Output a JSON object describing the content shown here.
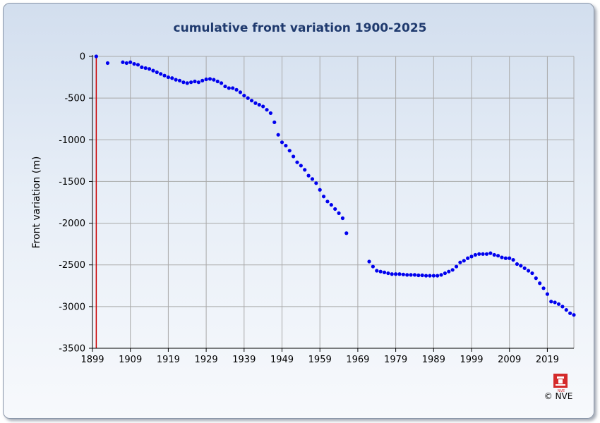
{
  "chart_data": {
    "type": "scatter",
    "title": "cumulative front variation 1900-2025",
    "xlabel": "",
    "ylabel": "Front variation (m)",
    "xlim": [
      1899,
      2026
    ],
    "ylim": [
      -3500,
      0
    ],
    "x_ticks": [
      1899,
      1909,
      1919,
      1929,
      1939,
      1949,
      1959,
      1969,
      1979,
      1989,
      1999,
      2009,
      2019
    ],
    "y_ticks": [
      0,
      -500,
      -1000,
      -1500,
      -2000,
      -2500,
      -3000,
      -3500
    ],
    "y_tick_labels": [
      "0",
      "-500",
      "-1000",
      "-1500",
      "-2000",
      "-2500",
      "-3000",
      "-3500"
    ],
    "grid": true,
    "reference_line": {
      "x": 1900,
      "color": "#cc0000"
    },
    "marker_color": "#0000ee",
    "series": [
      {
        "points": [
          [
            1900,
            0
          ],
          [
            1903,
            -80
          ],
          [
            1907,
            -70
          ],
          [
            1908,
            -80
          ],
          [
            1909,
            -70
          ],
          [
            1910,
            -90
          ],
          [
            1911,
            -100
          ],
          [
            1912,
            -130
          ],
          [
            1913,
            -140
          ],
          [
            1914,
            -150
          ],
          [
            1915,
            -170
          ],
          [
            1916,
            -190
          ],
          [
            1917,
            -210
          ],
          [
            1918,
            -230
          ],
          [
            1919,
            -250
          ],
          [
            1920,
            -260
          ],
          [
            1921,
            -280
          ],
          [
            1922,
            -290
          ],
          [
            1923,
            -310
          ],
          [
            1924,
            -320
          ],
          [
            1925,
            -310
          ],
          [
            1926,
            -300
          ],
          [
            1927,
            -310
          ],
          [
            1928,
            -290
          ],
          [
            1929,
            -275
          ],
          [
            1930,
            -270
          ],
          [
            1931,
            -280
          ],
          [
            1932,
            -300
          ],
          [
            1933,
            -320
          ],
          [
            1934,
            -360
          ],
          [
            1935,
            -380
          ],
          [
            1936,
            -380
          ],
          [
            1937,
            -400
          ],
          [
            1938,
            -430
          ],
          [
            1939,
            -470
          ],
          [
            1940,
            -500
          ],
          [
            1941,
            -530
          ],
          [
            1942,
            -560
          ],
          [
            1943,
            -580
          ],
          [
            1944,
            -600
          ],
          [
            1945,
            -640
          ],
          [
            1946,
            -680
          ],
          [
            1947,
            -790
          ],
          [
            1948,
            -940
          ],
          [
            1949,
            -1030
          ],
          [
            1950,
            -1070
          ],
          [
            1951,
            -1130
          ],
          [
            1952,
            -1200
          ],
          [
            1953,
            -1270
          ],
          [
            1954,
            -1310
          ],
          [
            1955,
            -1360
          ],
          [
            1956,
            -1430
          ],
          [
            1957,
            -1470
          ],
          [
            1958,
            -1520
          ],
          [
            1959,
            -1600
          ],
          [
            1960,
            -1680
          ],
          [
            1961,
            -1740
          ],
          [
            1962,
            -1780
          ],
          [
            1963,
            -1830
          ],
          [
            1964,
            -1880
          ],
          [
            1965,
            -1940
          ],
          [
            1966,
            -2120
          ],
          [
            1972,
            -2460
          ],
          [
            1973,
            -2520
          ],
          [
            1974,
            -2570
          ],
          [
            1975,
            -2580
          ],
          [
            1976,
            -2590
          ],
          [
            1977,
            -2600
          ],
          [
            1978,
            -2610
          ],
          [
            1979,
            -2610
          ],
          [
            1980,
            -2610
          ],
          [
            1981,
            -2615
          ],
          [
            1982,
            -2620
          ],
          [
            1983,
            -2620
          ],
          [
            1984,
            -2620
          ],
          [
            1985,
            -2625
          ],
          [
            1986,
            -2625
          ],
          [
            1987,
            -2630
          ],
          [
            1988,
            -2630
          ],
          [
            1989,
            -2630
          ],
          [
            1990,
            -2630
          ],
          [
            1991,
            -2620
          ],
          [
            1992,
            -2600
          ],
          [
            1993,
            -2580
          ],
          [
            1994,
            -2560
          ],
          [
            1995,
            -2520
          ],
          [
            1996,
            -2470
          ],
          [
            1997,
            -2450
          ],
          [
            1998,
            -2420
          ],
          [
            1999,
            -2400
          ],
          [
            2000,
            -2380
          ],
          [
            2001,
            -2370
          ],
          [
            2002,
            -2370
          ],
          [
            2003,
            -2370
          ],
          [
            2004,
            -2360
          ],
          [
            2005,
            -2380
          ],
          [
            2006,
            -2390
          ],
          [
            2007,
            -2410
          ],
          [
            2008,
            -2420
          ],
          [
            2009,
            -2420
          ],
          [
            2010,
            -2440
          ],
          [
            2011,
            -2490
          ],
          [
            2012,
            -2510
          ],
          [
            2013,
            -2540
          ],
          [
            2014,
            -2570
          ],
          [
            2015,
            -2600
          ],
          [
            2016,
            -2660
          ],
          [
            2017,
            -2720
          ],
          [
            2018,
            -2780
          ],
          [
            2019,
            -2850
          ],
          [
            2020,
            -2940
          ],
          [
            2021,
            -2950
          ],
          [
            2022,
            -2970
          ],
          [
            2023,
            -3000
          ],
          [
            2024,
            -3040
          ],
          [
            2025,
            -3080
          ],
          [
            2026,
            -3100
          ]
        ]
      }
    ]
  },
  "footer": {
    "logo_text": "NVE",
    "copyright": "© NVE"
  },
  "colors": {
    "title": "#1f3a6e",
    "grid": "#a9a9a9",
    "background_top": "#d2deee",
    "background_bottom": "#f7f9fc",
    "logo": "#d42a2a"
  }
}
